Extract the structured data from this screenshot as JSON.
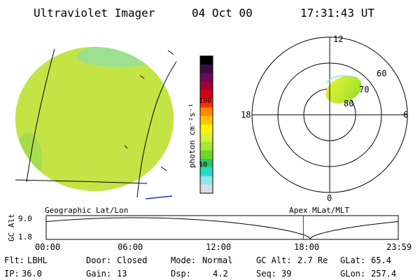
{
  "header": {
    "instrument": "Ultraviolet Imager",
    "date": "04 Oct 00",
    "time": "17:31:43 UT"
  },
  "colorbar": {
    "label": "photon cm⁻²s⁻¹",
    "ticks": [
      "100",
      "10"
    ],
    "colors": [
      "#000000",
      "#3a0a4a",
      "#6a0a5a",
      "#a0002a",
      "#d8001a",
      "#ff3000",
      "#ff8a00",
      "#ffc400",
      "#fff200",
      "#d6f23c",
      "#a8e830",
      "#6cd82a",
      "#30c468",
      "#28d8c8",
      "#8ce8e8",
      "#dcdcdc"
    ]
  },
  "polar": {
    "hour_labels": {
      "top": "12",
      "left": "18",
      "right": "6",
      "bottom": "0"
    },
    "lat_labels": [
      "60",
      "70",
      "80"
    ]
  },
  "timeline": {
    "axis_label": "GC Alt",
    "y_ticks": [
      "9.0",
      "1.8"
    ],
    "left_caption": "Geographic Lat/Lon",
    "right_caption": "Apex MLat/MLT",
    "x_ticks": [
      "00:00",
      "06:00",
      "12:00",
      "18:00",
      "23:59"
    ],
    "current_time_hours": 17.53
  },
  "status": [
    [
      {
        "key": "Flt:",
        "value": "LBHL"
      },
      {
        "key": "Door:",
        "value": "Closed"
      },
      {
        "key": "Mode:",
        "value": "Normal"
      },
      {
        "key": "GC Alt:",
        "value": "2.7 Re"
      },
      {
        "key": "GLat:",
        "value": "65.4"
      }
    ],
    [
      {
        "key": "IP:",
        "value": "36.0"
      },
      {
        "key": "Gain:",
        "value": "13"
      },
      {
        "key": "Dsp:",
        "value": "4.2"
      },
      {
        "key": "Seq:",
        "value": "39"
      },
      {
        "key": "GLon:",
        "value": "257.4"
      }
    ]
  ]
}
